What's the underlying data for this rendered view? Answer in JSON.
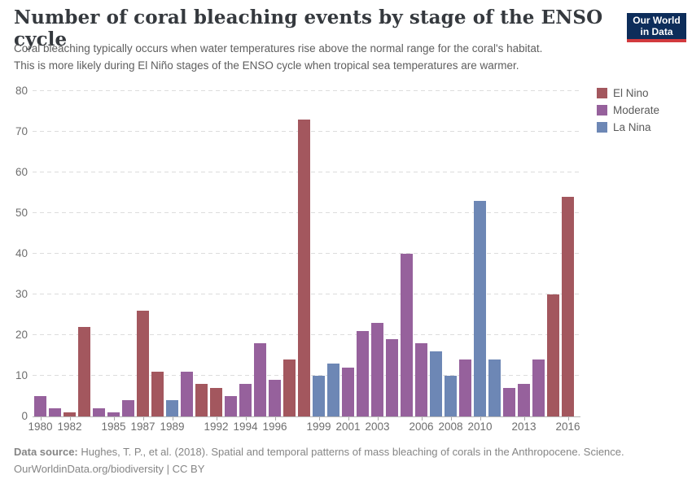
{
  "header": {
    "title": "Number of coral bleaching events by stage of the ENSO cycle",
    "subtitle_line1": "Coral bleaching typically occurs when water temperatures rise above the normal range for the coral's habitat.",
    "subtitle_line2": "This is more likely during El Niño stages of the ENSO cycle when tropical sea temperatures are warmer.",
    "logo": {
      "line1": "Our World",
      "line2": "in Data",
      "bg_color": "#0d2d5a",
      "accent_color": "#d23a3e"
    }
  },
  "chart_data": {
    "type": "bar",
    "title": "Number of coral bleaching events by stage of the ENSO cycle",
    "ylabel": "",
    "xlabel": "",
    "ylim": [
      0,
      80
    ],
    "grid": "horizontal-dashed",
    "legend_position": "top-right",
    "y_ticks": [
      0,
      10,
      20,
      30,
      40,
      50,
      60,
      70,
      80
    ],
    "x_tick_labels": [
      1980,
      1982,
      1985,
      1987,
      1989,
      1992,
      1994,
      1996,
      1999,
      2001,
      2003,
      2006,
      2008,
      2010,
      2013,
      2016
    ],
    "legend": [
      "El Nino",
      "Moderate",
      "La Nina"
    ],
    "colors": {
      "El Nino": "#a3575e",
      "Moderate": "#96619c",
      "La Nina": "#6d87b5"
    },
    "bars": [
      {
        "year": 1980,
        "value": 5,
        "phase": "Moderate"
      },
      {
        "year": 1981,
        "value": 2,
        "phase": "Moderate"
      },
      {
        "year": 1982,
        "value": 1,
        "phase": "El Nino"
      },
      {
        "year": 1983,
        "value": 22,
        "phase": "El Nino"
      },
      {
        "year": 1984,
        "value": 2,
        "phase": "Moderate"
      },
      {
        "year": 1985,
        "value": 1,
        "phase": "Moderate"
      },
      {
        "year": 1986,
        "value": 4,
        "phase": "Moderate"
      },
      {
        "year": 1987,
        "value": 26,
        "phase": "El Nino"
      },
      {
        "year": 1988,
        "value": 11,
        "phase": "El Nino"
      },
      {
        "year": 1989,
        "value": 4,
        "phase": "La Nina"
      },
      {
        "year": 1990,
        "value": 11,
        "phase": "Moderate"
      },
      {
        "year": 1991,
        "value": 8,
        "phase": "El Nino"
      },
      {
        "year": 1992,
        "value": 7,
        "phase": "El Nino"
      },
      {
        "year": 1993,
        "value": 5,
        "phase": "Moderate"
      },
      {
        "year": 1994,
        "value": 8,
        "phase": "Moderate"
      },
      {
        "year": 1995,
        "value": 18,
        "phase": "Moderate"
      },
      {
        "year": 1996,
        "value": 9,
        "phase": "Moderate"
      },
      {
        "year": 1997,
        "value": 14,
        "phase": "El Nino"
      },
      {
        "year": 1998,
        "value": 73,
        "phase": "El Nino"
      },
      {
        "year": 1999,
        "value": 10,
        "phase": "La Nina"
      },
      {
        "year": 2000,
        "value": 13,
        "phase": "La Nina"
      },
      {
        "year": 2001,
        "value": 12,
        "phase": "Moderate"
      },
      {
        "year": 2002,
        "value": 21,
        "phase": "Moderate"
      },
      {
        "year": 2003,
        "value": 23,
        "phase": "Moderate"
      },
      {
        "year": 2004,
        "value": 19,
        "phase": "Moderate"
      },
      {
        "year": 2005,
        "value": 40,
        "phase": "Moderate"
      },
      {
        "year": 2006,
        "value": 18,
        "phase": "Moderate"
      },
      {
        "year": 2007,
        "value": 16,
        "phase": "La Nina"
      },
      {
        "year": 2008,
        "value": 10,
        "phase": "La Nina"
      },
      {
        "year": 2009,
        "value": 14,
        "phase": "Moderate"
      },
      {
        "year": 2010,
        "value": 53,
        "phase": "La Nina"
      },
      {
        "year": 2011,
        "value": 14,
        "phase": "La Nina"
      },
      {
        "year": 2012,
        "value": 7,
        "phase": "Moderate"
      },
      {
        "year": 2013,
        "value": 8,
        "phase": "Moderate"
      },
      {
        "year": 2014,
        "value": 14,
        "phase": "Moderate"
      },
      {
        "year": 2015,
        "value": 30,
        "phase": "El Nino"
      },
      {
        "year": 2016,
        "value": 54,
        "phase": "El Nino"
      }
    ]
  },
  "footer": {
    "source_label": "Data source:",
    "source_text": "Hughes, T. P., et al. (2018). Spatial and temporal patterns of mass bleaching of corals in the Anthropocene. Science.",
    "url": "OurWorldinData.org/biodiversity",
    "separator": "|",
    "license": "CC BY"
  }
}
